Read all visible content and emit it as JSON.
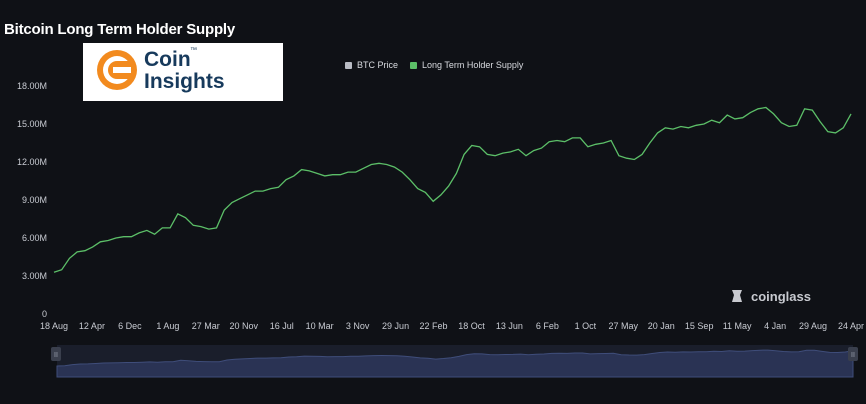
{
  "title": "Bitcoin Long Term Holder Supply",
  "logo": {
    "line1": "Coin",
    "line2": "Insights",
    "tm": "™"
  },
  "watermark": "coinglass",
  "colors": {
    "background": "#0f1116",
    "line": "#5cbf68",
    "btc_price": "#b9bcc4",
    "navigator_fill": "#2a3354",
    "navigator_line": "#3f4d7a"
  },
  "chart_data": {
    "type": "line",
    "title": "Bitcoin Long Term Holder Supply",
    "legend": [
      {
        "label": "BTC Price",
        "color": "#b9bcc4"
      },
      {
        "label": "Long Term Holder Supply",
        "color": "#5cbf68"
      }
    ],
    "legend_position": "top-center",
    "grid": false,
    "y_ticks": [
      "0",
      "3.00M",
      "6.00M",
      "9.00M",
      "12.00M",
      "15.00M",
      "18.00M"
    ],
    "ylim": [
      0,
      18000000
    ],
    "x_ticks": [
      "18 Aug",
      "12 Apr",
      "6 Dec",
      "1 Aug",
      "27 Mar",
      "20 Nov",
      "16 Jul",
      "10 Mar",
      "3 Nov",
      "29 Jun",
      "22 Feb",
      "18 Oct",
      "13 Jun",
      "6 Feb",
      "1 Oct",
      "27 May",
      "20 Jan",
      "15 Sep",
      "11 May",
      "4 Jan",
      "29 Aug",
      "24 Apr"
    ],
    "series": [
      {
        "name": "Long Term Holder Supply",
        "values": [
          3300000,
          3500000,
          4400000,
          4900000,
          5000000,
          5300000,
          5700000,
          5800000,
          6000000,
          6100000,
          6100000,
          6400000,
          6600000,
          6300000,
          6800000,
          6800000,
          7900000,
          7600000,
          7000000,
          6900000,
          6700000,
          6800000,
          8200000,
          8800000,
          9100000,
          9400000,
          9700000,
          9700000,
          9900000,
          10000000,
          10600000,
          10900000,
          11400000,
          11300000,
          11100000,
          10900000,
          11000000,
          11000000,
          11200000,
          11200000,
          11500000,
          11800000,
          11900000,
          11800000,
          11600000,
          11200000,
          10600000,
          9900000,
          9600000,
          8900000,
          9400000,
          10100000,
          11100000,
          12600000,
          13300000,
          13200000,
          12600000,
          12500000,
          12700000,
          12800000,
          13000000,
          12500000,
          12900000,
          13100000,
          13600000,
          13700000,
          13600000,
          13900000,
          13900000,
          13200000,
          13400000,
          13500000,
          13700000,
          12500000,
          12300000,
          12200000,
          12600000,
          13500000,
          14300000,
          14700000,
          14600000,
          14800000,
          14700000,
          14900000,
          15000000,
          15300000,
          15100000,
          15700000,
          15400000,
          15500000,
          15900000,
          16200000,
          16300000,
          15800000,
          15100000,
          14800000,
          14900000,
          16200000,
          16100000,
          15200000,
          14400000,
          14300000,
          14700000,
          15800000
        ]
      }
    ],
    "navigator": {
      "handle_left": "II",
      "handle_right": "II"
    }
  }
}
